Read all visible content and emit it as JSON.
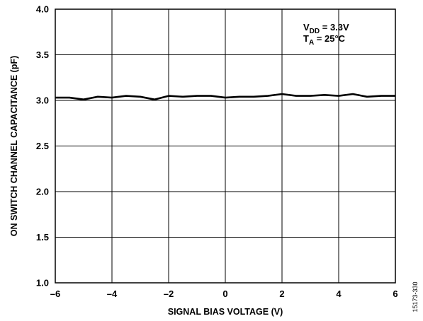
{
  "chart_data": {
    "type": "line",
    "title": "",
    "xlabel": "SIGNAL BIAS VOLTAGE (V)",
    "ylabel": "ON SWITCH CHANNEL CAPACITANCE (pF)",
    "xlim": [
      -6,
      6
    ],
    "ylim": [
      1.0,
      4.0
    ],
    "x_ticks": [
      -6,
      -4,
      -2,
      0,
      2,
      4,
      6
    ],
    "x_tick_labels": [
      "–6",
      "–4",
      "–2",
      "0",
      "2",
      "4",
      "6"
    ],
    "y_ticks": [
      1.0,
      1.5,
      2.0,
      2.5,
      3.0,
      3.5,
      4.0
    ],
    "y_tick_labels": [
      "1.0",
      "1.5",
      "2.0",
      "2.5",
      "3.0",
      "3.5",
      "4.0"
    ],
    "grid": true,
    "line_color": "#000000",
    "series": [
      {
        "x": [
          -6,
          -5.5,
          -5.0,
          -4.5,
          -4.0,
          -3.5,
          -3.0,
          -2.5,
          -2.0,
          -1.5,
          -1.0,
          -0.5,
          0,
          0.5,
          1.0,
          1.5,
          2.0,
          2.5,
          3.0,
          3.5,
          4.0,
          4.5,
          5.0,
          5.5,
          6.0
        ],
        "y": [
          3.03,
          3.03,
          3.01,
          3.04,
          3.03,
          3.05,
          3.04,
          3.01,
          3.05,
          3.04,
          3.05,
          3.05,
          3.03,
          3.04,
          3.04,
          3.05,
          3.07,
          3.05,
          3.05,
          3.06,
          3.05,
          3.07,
          3.04,
          3.05,
          3.05
        ]
      }
    ],
    "annotation": {
      "vdd_main": "V",
      "vdd_sub": "DD",
      "vdd_rest": " = 3.3V",
      "ta_main": "T",
      "ta_sub": "A",
      "ta_rest": " = 25°C"
    },
    "figure_id": "15173-330"
  }
}
